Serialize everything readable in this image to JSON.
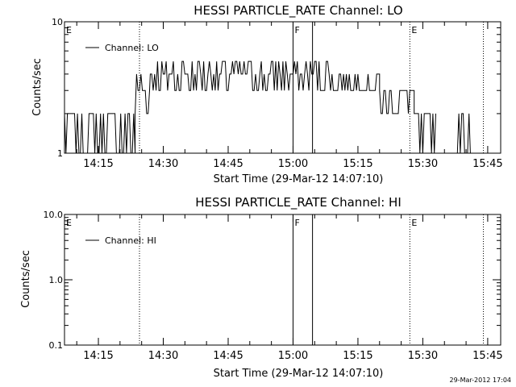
{
  "timestamp": "29-Mar-2012 17:04",
  "chart_data": [
    {
      "type": "line",
      "title": "HESSI PARTICLE_RATE Channel: LO",
      "xlabel": "Start Time (29-Mar-12 14:07:10)",
      "ylabel": "Counts/sec",
      "yscale": "log",
      "ylim": [
        1,
        10
      ],
      "ytick_labels": [
        "1",
        "10"
      ],
      "xlim": [
        "14:07:10",
        "15:48:00"
      ],
      "x_ticks": [
        "14:15",
        "14:30",
        "14:45",
        "15:00",
        "15:15",
        "15:30",
        "15:45"
      ],
      "legend": {
        "label": "Channel: LO",
        "position": "top-left"
      },
      "marker_labels": [
        {
          "text": "E",
          "time": "14:07:10"
        },
        {
          "text": "F",
          "time": "15:00:00"
        },
        {
          "text": "E",
          "time": "15:27:00"
        }
      ],
      "vlines": [
        {
          "time": "14:24:30",
          "style": "dotted"
        },
        {
          "time": "15:00:00",
          "style": "solid"
        },
        {
          "time": "15:04:30",
          "style": "solid"
        },
        {
          "time": "15:27:00",
          "style": "dotted"
        },
        {
          "time": "15:44:00",
          "style": "dotted"
        }
      ],
      "series": [
        {
          "segments": [
            {
              "start": "14:07:10",
              "end": "14:23:30",
              "low": 1,
              "high": 2
            },
            {
              "start": "14:23:30",
              "end": "14:27:00",
              "low": 2,
              "high": 4
            },
            {
              "start": "14:27:00",
              "end": "15:09:00",
              "low": 3,
              "high": 5
            },
            {
              "start": "15:09:00",
              "end": "15:20:00",
              "low": 3,
              "high": 4
            },
            {
              "start": "15:20:00",
              "end": "15:28:00",
              "low": 2,
              "high": 3
            },
            {
              "start": "15:28:00",
              "end": "15:33:00",
              "low": 1,
              "high": 2
            },
            {
              "start": "15:38:00",
              "end": "15:41:00",
              "low": 1,
              "high": 2
            }
          ]
        }
      ]
    },
    {
      "type": "line",
      "title": "HESSI PARTICLE_RATE Channel: HI",
      "xlabel": "Start Time (29-Mar-12 14:07:10)",
      "ylabel": "Counts/sec",
      "yscale": "log",
      "ylim": [
        0.1,
        10.0
      ],
      "ytick_labels": [
        "0.1",
        "1.0",
        "10.0"
      ],
      "xlim": [
        "14:07:10",
        "15:48:00"
      ],
      "x_ticks": [
        "14:15",
        "14:30",
        "14:45",
        "15:00",
        "15:15",
        "15:30",
        "15:45"
      ],
      "legend": {
        "label": "Channel: HI",
        "position": "top-left"
      },
      "marker_labels": [
        {
          "text": "E",
          "time": "14:07:10"
        },
        {
          "text": "F",
          "time": "15:00:00"
        },
        {
          "text": "E",
          "time": "15:27:00"
        }
      ],
      "vlines": [
        {
          "time": "14:24:30",
          "style": "dotted"
        },
        {
          "time": "15:00:00",
          "style": "solid"
        },
        {
          "time": "15:04:30",
          "style": "solid"
        },
        {
          "time": "15:27:00",
          "style": "dotted"
        },
        {
          "time": "15:44:00",
          "style": "dotted"
        }
      ],
      "series": []
    }
  ]
}
